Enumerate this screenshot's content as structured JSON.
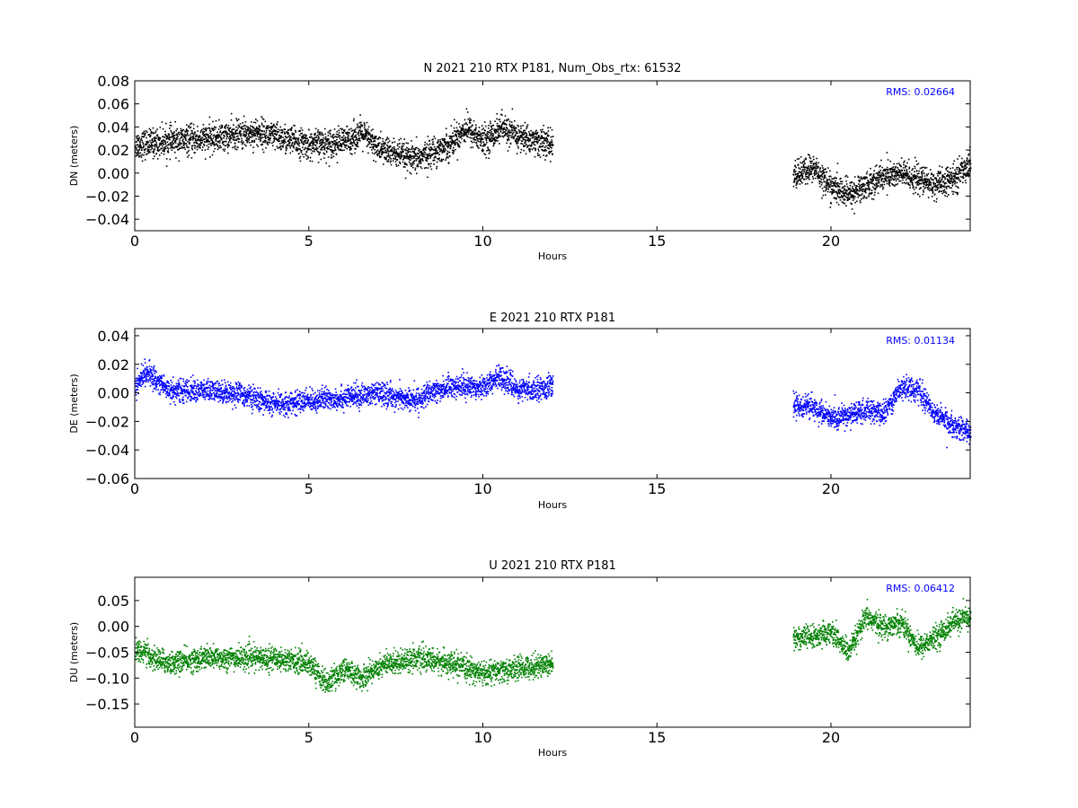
{
  "chart_data": [
    {
      "type": "scatter",
      "title": "N 2021 210 RTX  P181, Num_Obs_rtx: 61532",
      "xlabel": "Hours",
      "ylabel": "DN (meters)",
      "xlim": [
        0,
        24
      ],
      "ylim": [
        -0.05,
        0.08
      ],
      "xticks": [
        0,
        5,
        10,
        15,
        20
      ],
      "xtick_labels": [
        "0",
        "5",
        "10",
        "15",
        "20"
      ],
      "yticks": [
        -0.04,
        -0.02,
        0.0,
        0.02,
        0.04,
        0.06,
        0.08
      ],
      "ytick_labels": [
        "−0.04",
        "−0.02",
        "0.00",
        "0.02",
        "0.04",
        "0.06",
        "0.08"
      ],
      "annotation": "RMS:  0.02664",
      "annotation_color": "#0000ff",
      "grid": false,
      "series": [
        {
          "color": "#000000",
          "spread": 0.011,
          "segments": [
            {
              "x": [
                0,
                1,
                2,
                3,
                3.5,
                4,
                5,
                6,
                6.5,
                7,
                8,
                9,
                9.5,
                10,
                10.5,
                11,
                12
              ],
              "y": [
                0.025,
                0.028,
                0.03,
                0.034,
                0.036,
                0.032,
                0.025,
                0.028,
                0.035,
                0.022,
                0.012,
                0.025,
                0.04,
                0.028,
                0.04,
                0.032,
                0.025
              ]
            },
            {
              "x": [
                18.9,
                19.5,
                20,
                20.5,
                21,
                21.5,
                22,
                22.5,
                23,
                23.5,
                24
              ],
              "y": [
                -0.002,
                0.005,
                -0.012,
                -0.018,
                -0.01,
                -0.002,
                0.0,
                -0.005,
                -0.01,
                -0.005,
                0.01
              ]
            }
          ]
        }
      ]
    },
    {
      "type": "scatter",
      "title": "E 2021 210 RTX  P181",
      "xlabel": "Hours",
      "ylabel": "DE (meters)",
      "xlim": [
        0,
        24
      ],
      "ylim": [
        -0.06,
        0.045
      ],
      "xticks": [
        0,
        5,
        10,
        15,
        20
      ],
      "xtick_labels": [
        "0",
        "5",
        "10",
        "15",
        "20"
      ],
      "yticks": [
        -0.06,
        -0.04,
        -0.02,
        0.0,
        0.02,
        0.04
      ],
      "ytick_labels": [
        "−0.06",
        "−0.04",
        "−0.02",
        "0.00",
        "0.02",
        "0.04"
      ],
      "annotation": "RMS:  0.01134",
      "annotation_color": "#0000ff",
      "grid": false,
      "series": [
        {
          "color": "#0000ff",
          "spread": 0.007,
          "segments": [
            {
              "x": [
                0,
                0.3,
                1,
                2,
                3,
                4,
                5,
                6,
                7,
                8,
                9,
                10,
                10.5,
                11,
                12
              ],
              "y": [
                0.005,
                0.015,
                0.002,
                0.002,
                0.0,
                -0.008,
                -0.005,
                -0.003,
                0.0,
                -0.005,
                0.005,
                0.005,
                0.012,
                0.002,
                0.005
              ]
            },
            {
              "x": [
                18.9,
                19.5,
                20,
                20.5,
                21,
                21.5,
                22,
                22.5,
                23,
                23.5,
                24
              ],
              "y": [
                -0.008,
                -0.01,
                -0.018,
                -0.015,
                -0.012,
                -0.014,
                0.005,
                0.002,
                -0.015,
                -0.022,
                -0.028
              ]
            }
          ]
        }
      ]
    },
    {
      "type": "scatter",
      "title": "U 2021 210 RTX  P181",
      "xlabel": "Hours",
      "ylabel": "DU (meters)",
      "xlim": [
        0,
        24
      ],
      "ylim": [
        -0.195,
        0.095
      ],
      "xticks": [
        0,
        5,
        10,
        15,
        20
      ],
      "xtick_labels": [
        "0",
        "5",
        "10",
        "15",
        "20"
      ],
      "yticks": [
        -0.15,
        -0.1,
        -0.05,
        0.0,
        0.05
      ],
      "ytick_labels": [
        "−0.15",
        "−0.10",
        "−0.05",
        "0.00",
        "0.05"
      ],
      "annotation": "RMS:  0.06412",
      "annotation_color": "#0000ff",
      "grid": false,
      "series": [
        {
          "color": "#008000",
          "spread": 0.02,
          "segments": [
            {
              "x": [
                0,
                0.5,
                1,
                2,
                3,
                4,
                5,
                5.5,
                6,
                6.5,
                7,
                8,
                9,
                10,
                11,
                12
              ],
              "y": [
                -0.04,
                -0.06,
                -0.07,
                -0.06,
                -0.06,
                -0.06,
                -0.07,
                -0.11,
                -0.08,
                -0.1,
                -0.075,
                -0.06,
                -0.07,
                -0.09,
                -0.08,
                -0.07
              ]
            },
            {
              "x": [
                18.9,
                19.5,
                20,
                20.5,
                21,
                21.5,
                22,
                22.5,
                23,
                23.5,
                24
              ],
              "y": [
                -0.02,
                -0.02,
                -0.01,
                -0.05,
                0.02,
                0.0,
                0.01,
                -0.04,
                -0.02,
                0.01,
                0.02
              ]
            }
          ]
        }
      ]
    }
  ]
}
